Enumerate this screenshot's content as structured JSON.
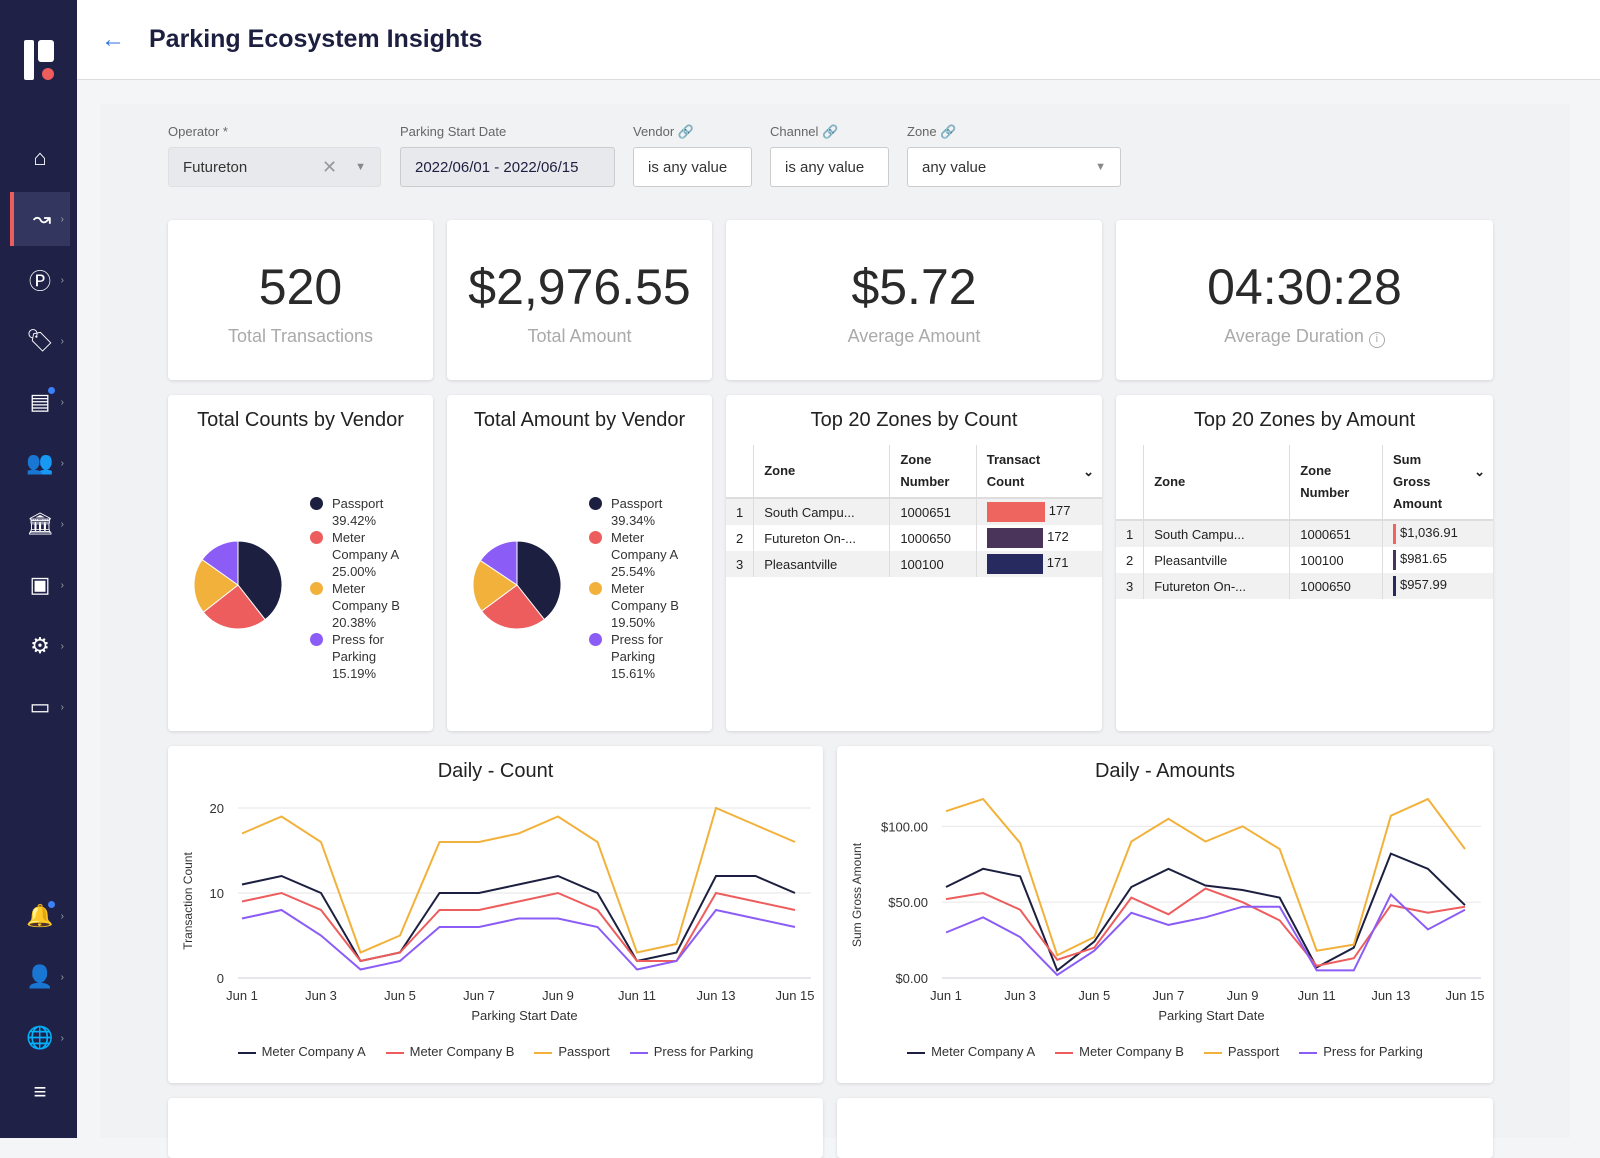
{
  "header": {
    "title": "Parking Ecosystem Insights"
  },
  "sidebar": {
    "items": [
      "home-icon",
      "analytics-icon",
      "parking-icon",
      "tag-icon",
      "receipt-icon",
      "people-icon",
      "bank-icon",
      "report-icon",
      "settings-icon",
      "display-icon",
      "bell-icon",
      "user-icon",
      "globe-icon",
      "collapse-icon"
    ],
    "active": "analytics-icon"
  },
  "filters": {
    "operator": {
      "label": "Operator *",
      "value": "Futureton"
    },
    "date": {
      "label": "Parking Start Date",
      "value": "2022/06/01 - 2022/06/15"
    },
    "vendor": {
      "label": "Vendor",
      "value": "is any value"
    },
    "channel": {
      "label": "Channel",
      "value": "is any value"
    },
    "zone": {
      "label": "Zone",
      "value": "any value"
    }
  },
  "kpis": [
    {
      "value": "520",
      "label": "Total Transactions"
    },
    {
      "value": "$2,976.55",
      "label": "Total Amount"
    },
    {
      "value": "$5.72",
      "label": "Average Amount"
    },
    {
      "value": "04:30:28",
      "label": "Average Duration"
    }
  ],
  "colors": {
    "Passport": "#1c1f3f",
    "Meter Company A": "#ee5d5d",
    "Meter Company B": "#f2b13b",
    "Press for Parking": "#8b5cf6",
    "line_Meter Company A": "#1c1f3f",
    "line_Meter Company B": "#ee5d5d",
    "line_Passport": "#f2b13b",
    "line_Press for Parking": "#8b5cf6"
  },
  "chart_data": [
    {
      "type": "pie",
      "title": "Total Counts by Vendor",
      "labels": [
        "Passport",
        "Meter Company A",
        "Meter Company B",
        "Press for Parking"
      ],
      "values": [
        39.42,
        25.0,
        20.38,
        15.19
      ],
      "value_labels": [
        "39.42%",
        "25.00%",
        "20.38%",
        "15.19%"
      ],
      "legend": "right"
    },
    {
      "type": "pie",
      "title": "Total Amount by Vendor",
      "labels": [
        "Passport",
        "Meter Company A",
        "Meter Company B",
        "Press for Parking"
      ],
      "values": [
        39.34,
        25.54,
        19.5,
        15.61
      ],
      "value_labels": [
        "39.34%",
        "25.54%",
        "19.50%",
        "15.61%"
      ],
      "legend": "right"
    },
    {
      "type": "table",
      "title": "Top 20 Zones by Count",
      "columns": [
        "Zone",
        "Zone Number",
        "Transaction Count"
      ],
      "column_headers": [
        "Zone",
        "Zone\nNumber",
        "Transact\nCount"
      ],
      "rows": [
        [
          "South Campu...",
          "1000651",
          "177"
        ],
        [
          "Futureton On-...",
          "1000650",
          "172"
        ],
        [
          "Pleasantville",
          "100100",
          "171"
        ]
      ],
      "bar_colors": [
        "#ee6560",
        "#4a3459",
        "#272a5e"
      ]
    },
    {
      "type": "table",
      "title": "Top 20 Zones by Amount",
      "columns": [
        "Zone",
        "Zone Number",
        "Sum Gross Amount"
      ],
      "column_headers": [
        "Zone",
        "Zone\nNumber",
        "Sum\nGross\nAmount"
      ],
      "rows": [
        [
          "South Campu...",
          "1000651",
          "$1,036.91"
        ],
        [
          "Pleasantville",
          "100100",
          "$981.65"
        ],
        [
          "Futureton On-...",
          "1000650",
          "$957.99"
        ]
      ],
      "bar_colors": [
        "#ee6560",
        "#4a3459",
        "#272a5e"
      ]
    },
    {
      "type": "line",
      "title": "Daily - Count",
      "xlabel": "Parking Start Date",
      "ylabel": "Transaction Count",
      "ylim": [
        0,
        20
      ],
      "yticks": [
        "0",
        "10",
        "20"
      ],
      "x": [
        "Jun 1",
        "Jun 2",
        "Jun 3",
        "Jun 4",
        "Jun 5",
        "Jun 6",
        "Jun 7",
        "Jun 8",
        "Jun 9",
        "Jun 10",
        "Jun 11",
        "Jun 12",
        "Jun 13",
        "Jun 14",
        "Jun 15"
      ],
      "xticks": [
        "Jun 1",
        "Jun 3",
        "Jun 5",
        "Jun 7",
        "Jun 9",
        "Jun 11",
        "Jun 13",
        "Jun 15"
      ],
      "legend": "bottom",
      "series": [
        {
          "name": "Meter Company A",
          "values": [
            11,
            12,
            10,
            2,
            3,
            10,
            10,
            11,
            12,
            10,
            2,
            3,
            12,
            12,
            10
          ]
        },
        {
          "name": "Meter Company B",
          "values": [
            9,
            10,
            8,
            2,
            3,
            8,
            8,
            9,
            10,
            8,
            2,
            2,
            10,
            9,
            8
          ]
        },
        {
          "name": "Passport",
          "values": [
            17,
            19,
            16,
            3,
            5,
            16,
            16,
            17,
            19,
            16,
            3,
            4,
            20,
            18,
            16
          ]
        },
        {
          "name": "Press for Parking",
          "values": [
            7,
            8,
            5,
            1,
            2,
            6,
            6,
            7,
            7,
            6,
            1,
            2,
            8,
            7,
            6
          ]
        }
      ]
    },
    {
      "type": "line",
      "title": "Daily - Amounts",
      "xlabel": "Parking Start Date",
      "ylabel": "Sum Gross Amount",
      "ylim": [
        0,
        120
      ],
      "yticks": [
        "$0.00",
        "$50.00",
        "$100.00"
      ],
      "x": [
        "Jun 1",
        "Jun 2",
        "Jun 3",
        "Jun 4",
        "Jun 5",
        "Jun 6",
        "Jun 7",
        "Jun 8",
        "Jun 9",
        "Jun 10",
        "Jun 11",
        "Jun 12",
        "Jun 13",
        "Jun 14",
        "Jun 15"
      ],
      "xticks": [
        "Jun 1",
        "Jun 3",
        "Jun 5",
        "Jun 7",
        "Jun 9",
        "Jun 11",
        "Jun 13",
        "Jun 15"
      ],
      "legend": "bottom",
      "series": [
        {
          "name": "Meter Company A",
          "values": [
            60,
            72,
            67,
            5,
            24,
            60,
            72,
            61,
            58,
            53,
            7,
            20,
            82,
            72,
            48
          ]
        },
        {
          "name": "Meter Company B",
          "values": [
            52,
            56,
            45,
            12,
            20,
            53,
            42,
            59,
            50,
            38,
            8,
            13,
            48,
            43,
            47
          ]
        },
        {
          "name": "Passport",
          "values": [
            110,
            118,
            89,
            15,
            27,
            90,
            105,
            90,
            100,
            85,
            18,
            22,
            107,
            118,
            85
          ]
        },
        {
          "name": "Press for Parking",
          "values": [
            30,
            40,
            27,
            2,
            18,
            43,
            35,
            40,
            47,
            47,
            5,
            5,
            55,
            32,
            45
          ]
        }
      ]
    }
  ]
}
